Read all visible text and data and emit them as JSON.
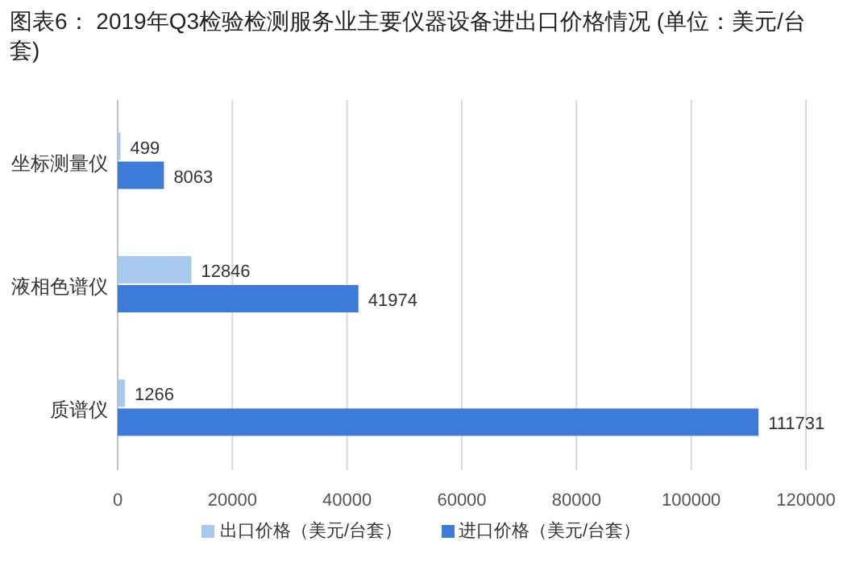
{
  "chart_data": {
    "type": "bar",
    "orientation": "horizontal",
    "title": "图表6： 2019年Q3检验检测服务业主要仪器设备进出口价格情况 (单位：美元/台套)",
    "categories": [
      "坐标测量仪",
      "液相色谱仪",
      "质谱仪"
    ],
    "series": [
      {
        "name": "出口价格（美元/台套）",
        "color": "#a9c8ee",
        "values": [
          499,
          12846,
          1266
        ]
      },
      {
        "name": "进口价格（美元/台套）",
        "color": "#3d7bd9",
        "values": [
          8063,
          41974,
          111731
        ]
      }
    ],
    "xlim": [
      0,
      120000
    ],
    "xticks": [
      0,
      20000,
      40000,
      60000,
      80000,
      100000,
      120000
    ],
    "grid": "x",
    "legend": "bottom",
    "data_labels": true
  }
}
